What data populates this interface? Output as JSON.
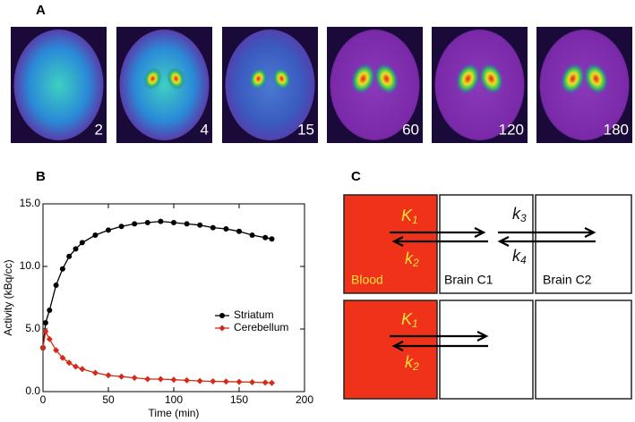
{
  "panels": {
    "a": {
      "label": "A",
      "times": [
        "2",
        "4",
        "15",
        "60",
        "120",
        "180"
      ]
    },
    "b": {
      "label": "B"
    },
    "c": {
      "label": "C"
    }
  },
  "chart_data": {
    "type": "line",
    "xlabel": "Time (min)",
    "ylabel": "Activity (kBq/cc)",
    "x": [
      0,
      2,
      5,
      10,
      15,
      20,
      25,
      30,
      40,
      50,
      60,
      70,
      80,
      90,
      100,
      110,
      120,
      130,
      140,
      150,
      160,
      170,
      175
    ],
    "series": [
      {
        "name": "Striatum",
        "color": "#000000",
        "marker": "circle",
        "values": [
          3.5,
          5.5,
          6.5,
          8.5,
          9.8,
          10.8,
          11.4,
          11.9,
          12.5,
          12.9,
          13.2,
          13.4,
          13.5,
          13.6,
          13.5,
          13.4,
          13.3,
          13.1,
          13.0,
          12.8,
          12.5,
          12.3,
          12.2
        ]
      },
      {
        "name": "Cerebellum",
        "color": "#d42a1a",
        "marker": "diamond",
        "values": [
          3.5,
          4.8,
          4.2,
          3.3,
          2.7,
          2.3,
          2.0,
          1.8,
          1.5,
          1.3,
          1.2,
          1.1,
          1.0,
          1.0,
          0.95,
          0.9,
          0.85,
          0.82,
          0.8,
          0.78,
          0.75,
          0.72,
          0.7
        ]
      }
    ],
    "xlim": [
      0,
      200
    ],
    "xticks": [
      0,
      50,
      100,
      150,
      200
    ],
    "ylim": [
      0,
      15
    ],
    "yticks": [
      {
        "value": 0,
        "label": "0.0"
      },
      {
        "value": 5,
        "label": "5.0"
      },
      {
        "value": 10,
        "label": "10.0"
      },
      {
        "value": 15,
        "label": "15.0"
      }
    ],
    "legend": "center right"
  },
  "diagram": {
    "compartments": [
      "Blood",
      "Brain C1",
      "Brain C2"
    ],
    "rates": [
      {
        "symbol": "K",
        "sub": "1"
      },
      {
        "symbol": "k",
        "sub": "2"
      },
      {
        "symbol": "k",
        "sub": "3"
      },
      {
        "symbol": "k",
        "sub": "4"
      }
    ]
  }
}
